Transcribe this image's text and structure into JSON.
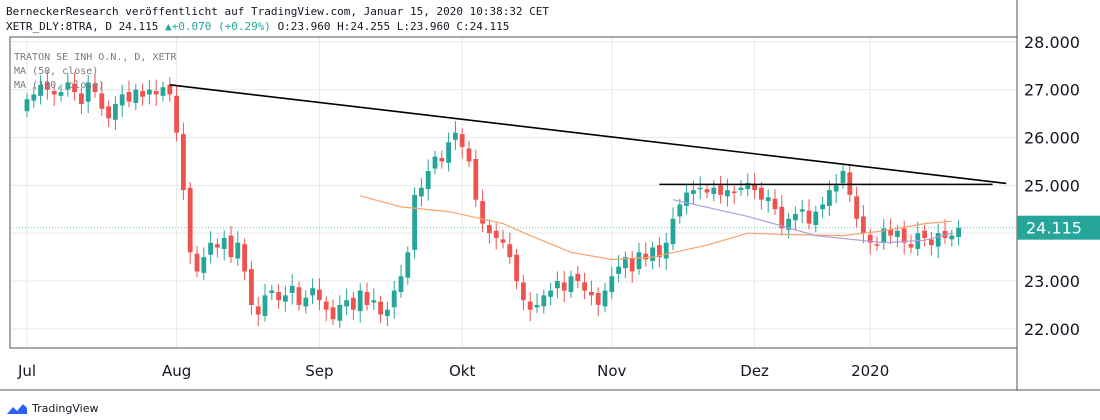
{
  "header": {
    "line1": "BerneckerResearch veröffentlicht auf TradingView.com, Januar 15, 2020 10:38:32 CET",
    "symbol": "XETR_DLY:8TRA, D",
    "last": "24.115",
    "change": "+0.070 (+0.29%)",
    "ohlc": "O:23.960 H:24.255 L:23.960 C:24.115",
    "up_arrow": "▲"
  },
  "legend": {
    "title": "TRATON SE INH O.N., D, XETR",
    "ma50": "MA (50, close)",
    "ma100": "MA (100, close)"
  },
  "footer": {
    "brand": "TradingView"
  },
  "colors": {
    "up": "#26a69a",
    "down": "#ef5350",
    "ma50": "#f7a46a",
    "ma100": "#b39ddb",
    "trend": "#000000",
    "grid": "#e8e9ec",
    "price_label": "#26a69a"
  },
  "chart_data": {
    "type": "candlestick",
    "title": "TRATON SE INH O.N., D, XETR",
    "ylim": [
      21.6,
      28.1
    ],
    "y_ticks": [
      22,
      23,
      24,
      25,
      26,
      27,
      28
    ],
    "y_tick_labels": [
      "22.000",
      "23.000",
      "24.000",
      "25.000",
      "26.000",
      "27.000",
      "28.000"
    ],
    "x_tick_labels": [
      {
        "label": "Jul",
        "index": 0
      },
      {
        "label": "Aug",
        "index": 22
      },
      {
        "label": "Sep",
        "index": 43
      },
      {
        "label": "Okt",
        "index": 64
      },
      {
        "label": "Nov",
        "index": 86
      },
      {
        "label": "Dez",
        "index": 107
      },
      {
        "label": "2020",
        "index": 124
      }
    ],
    "last_price": 24.115,
    "last_price_label": "24.115",
    "close": [
      26.8,
      26.9,
      27.1,
      27.0,
      26.9,
      26.95,
      27.15,
      26.95,
      26.7,
      27.15,
      26.95,
      26.6,
      26.4,
      26.7,
      26.9,
      26.75,
      27.0,
      26.85,
      27.0,
      26.9,
      27.05,
      26.9,
      26.1,
      24.9,
      23.6,
      23.2,
      23.5,
      23.8,
      23.7,
      23.9,
      23.5,
      23.8,
      23.2,
      22.5,
      22.3,
      22.7,
      22.8,
      22.6,
      22.7,
      22.9,
      22.5,
      22.65,
      22.85,
      22.6,
      22.4,
      22.2,
      22.5,
      22.6,
      22.4,
      22.8,
      22.5,
      22.6,
      22.3,
      22.4,
      22.8,
      23.1,
      23.6,
      24.8,
      24.95,
      25.3,
      25.6,
      25.5,
      25.9,
      26.1,
      25.8,
      25.5,
      24.7,
      24.2,
      24.0,
      23.9,
      23.8,
      23.5,
      23.0,
      22.6,
      22.4,
      22.5,
      22.7,
      22.8,
      23.0,
      22.8,
      23.1,
      23.0,
      22.8,
      22.7,
      22.5,
      22.8,
      23.1,
      23.3,
      23.5,
      23.2,
      23.6,
      23.45,
      23.7,
      23.5,
      23.8,
      24.3,
      24.6,
      24.85,
      24.9,
      24.95,
      24.85,
      24.95,
      24.8,
      24.9,
      24.85,
      24.95,
      25.05,
      24.9,
      24.7,
      24.75,
      24.5,
      24.1,
      24.3,
      24.4,
      24.5,
      24.2,
      24.45,
      24.6,
      24.9,
      25.0,
      25.3,
      24.8,
      24.3,
      24.0,
      23.8,
      23.75,
      24.1,
      23.95,
      24.05,
      23.8,
      23.7,
      24.0,
      23.9,
      23.75,
      24.0,
      23.9,
      23.95,
      24.115
    ],
    "series": [
      {
        "name": "MA (50, close)",
        "color": "#f7a46a",
        "points": [
          [
            49,
            24.78
          ],
          [
            55,
            24.55
          ],
          [
            62,
            24.45
          ],
          [
            70,
            24.2
          ],
          [
            74,
            23.95
          ],
          [
            80,
            23.6
          ],
          [
            86,
            23.45
          ],
          [
            92,
            23.5
          ],
          [
            100,
            23.75
          ],
          [
            106,
            24.0
          ],
          [
            112,
            23.97
          ],
          [
            120,
            23.95
          ],
          [
            126,
            24.05
          ],
          [
            132,
            24.2
          ],
          [
            136,
            24.25
          ]
        ]
      },
      {
        "name": "MA (100, close)",
        "color": "#b39ddb",
        "points": [
          [
            95,
            24.7
          ],
          [
            106,
            24.35
          ],
          [
            116,
            23.95
          ],
          [
            126,
            23.8
          ],
          [
            132,
            23.85
          ],
          [
            136,
            24.0
          ]
        ]
      }
    ],
    "annotations": [
      {
        "type": "trendline",
        "from": [
          21,
          27.1
        ],
        "to": [
          144,
          25.04
        ]
      },
      {
        "type": "horizontal",
        "from": [
          93,
          25.02
        ],
        "to": [
          142,
          25.02
        ]
      }
    ]
  }
}
